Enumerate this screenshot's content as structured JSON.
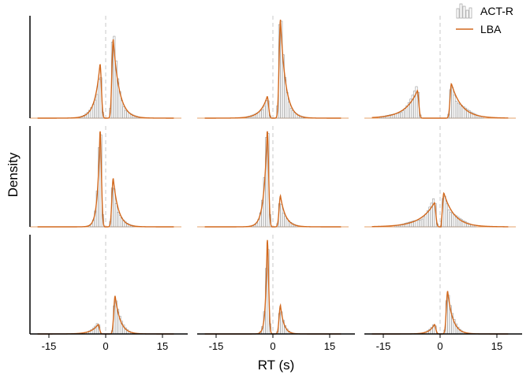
{
  "chart_data": {
    "type": "histogram-density-grid",
    "xlabel": "RT (s)",
    "ylabel": "Density",
    "xlim": [
      -20,
      20
    ],
    "x_ticks": [
      -15,
      0,
      15
    ],
    "x_tick_labels": [
      "-15",
      "0",
      "15"
    ],
    "legend": {
      "placement": "top-right",
      "entries": [
        {
          "label": "ACT-R",
          "style": "histogram",
          "color": "#999999"
        },
        {
          "label": "LBA",
          "style": "line",
          "color": "#d2691e"
        }
      ]
    },
    "panels": [
      {
        "row": 1,
        "col": 1,
        "left_peak": {
          "loc": -1.5,
          "height": 0.55,
          "width": 3.0
        },
        "right_peak": {
          "loc": 2.0,
          "height": 0.8,
          "width": 3.5
        }
      },
      {
        "row": 1,
        "col": 2,
        "left_peak": {
          "loc": -1.5,
          "height": 0.22,
          "width": 4.0
        },
        "right_peak": {
          "loc": 2.0,
          "height": 1.0,
          "width": 3.0
        }
      },
      {
        "row": 1,
        "col": 3,
        "left_peak": {
          "loc": -6.0,
          "height": 0.28,
          "width": 7.0
        },
        "right_peak": {
          "loc": 3.0,
          "height": 0.35,
          "width": 6.0
        }
      },
      {
        "row": 2,
        "col": 1,
        "left_peak": {
          "loc": -1.5,
          "height": 1.0,
          "width": 1.5
        },
        "right_peak": {
          "loc": 2.0,
          "height": 0.5,
          "width": 3.0
        }
      },
      {
        "row": 2,
        "col": 2,
        "left_peak": {
          "loc": -1.5,
          "height": 1.0,
          "width": 2.0
        },
        "right_peak": {
          "loc": 2.0,
          "height": 0.32,
          "width": 3.0
        }
      },
      {
        "row": 2,
        "col": 3,
        "left_peak": {
          "loc": -1.5,
          "height": 0.25,
          "width": 8.0
        },
        "right_peak": {
          "loc": 1.0,
          "height": 0.35,
          "width": 6.0
        }
      },
      {
        "row": 3,
        "col": 1,
        "left_peak": {
          "loc": -2.0,
          "height": 0.1,
          "width": 4.0
        },
        "right_peak": {
          "loc": 2.5,
          "height": 0.4,
          "width": 3.0
        }
      },
      {
        "row": 3,
        "col": 2,
        "left_peak": {
          "loc": -1.5,
          "height": 1.0,
          "width": 1.0
        },
        "right_peak": {
          "loc": 2.0,
          "height": 0.3,
          "width": 2.0
        }
      },
      {
        "row": 3,
        "col": 3,
        "left_peak": {
          "loc": -1.5,
          "height": 0.1,
          "width": 3.0
        },
        "right_peak": {
          "loc": 2.0,
          "height": 0.45,
          "width": 3.0
        }
      }
    ]
  }
}
